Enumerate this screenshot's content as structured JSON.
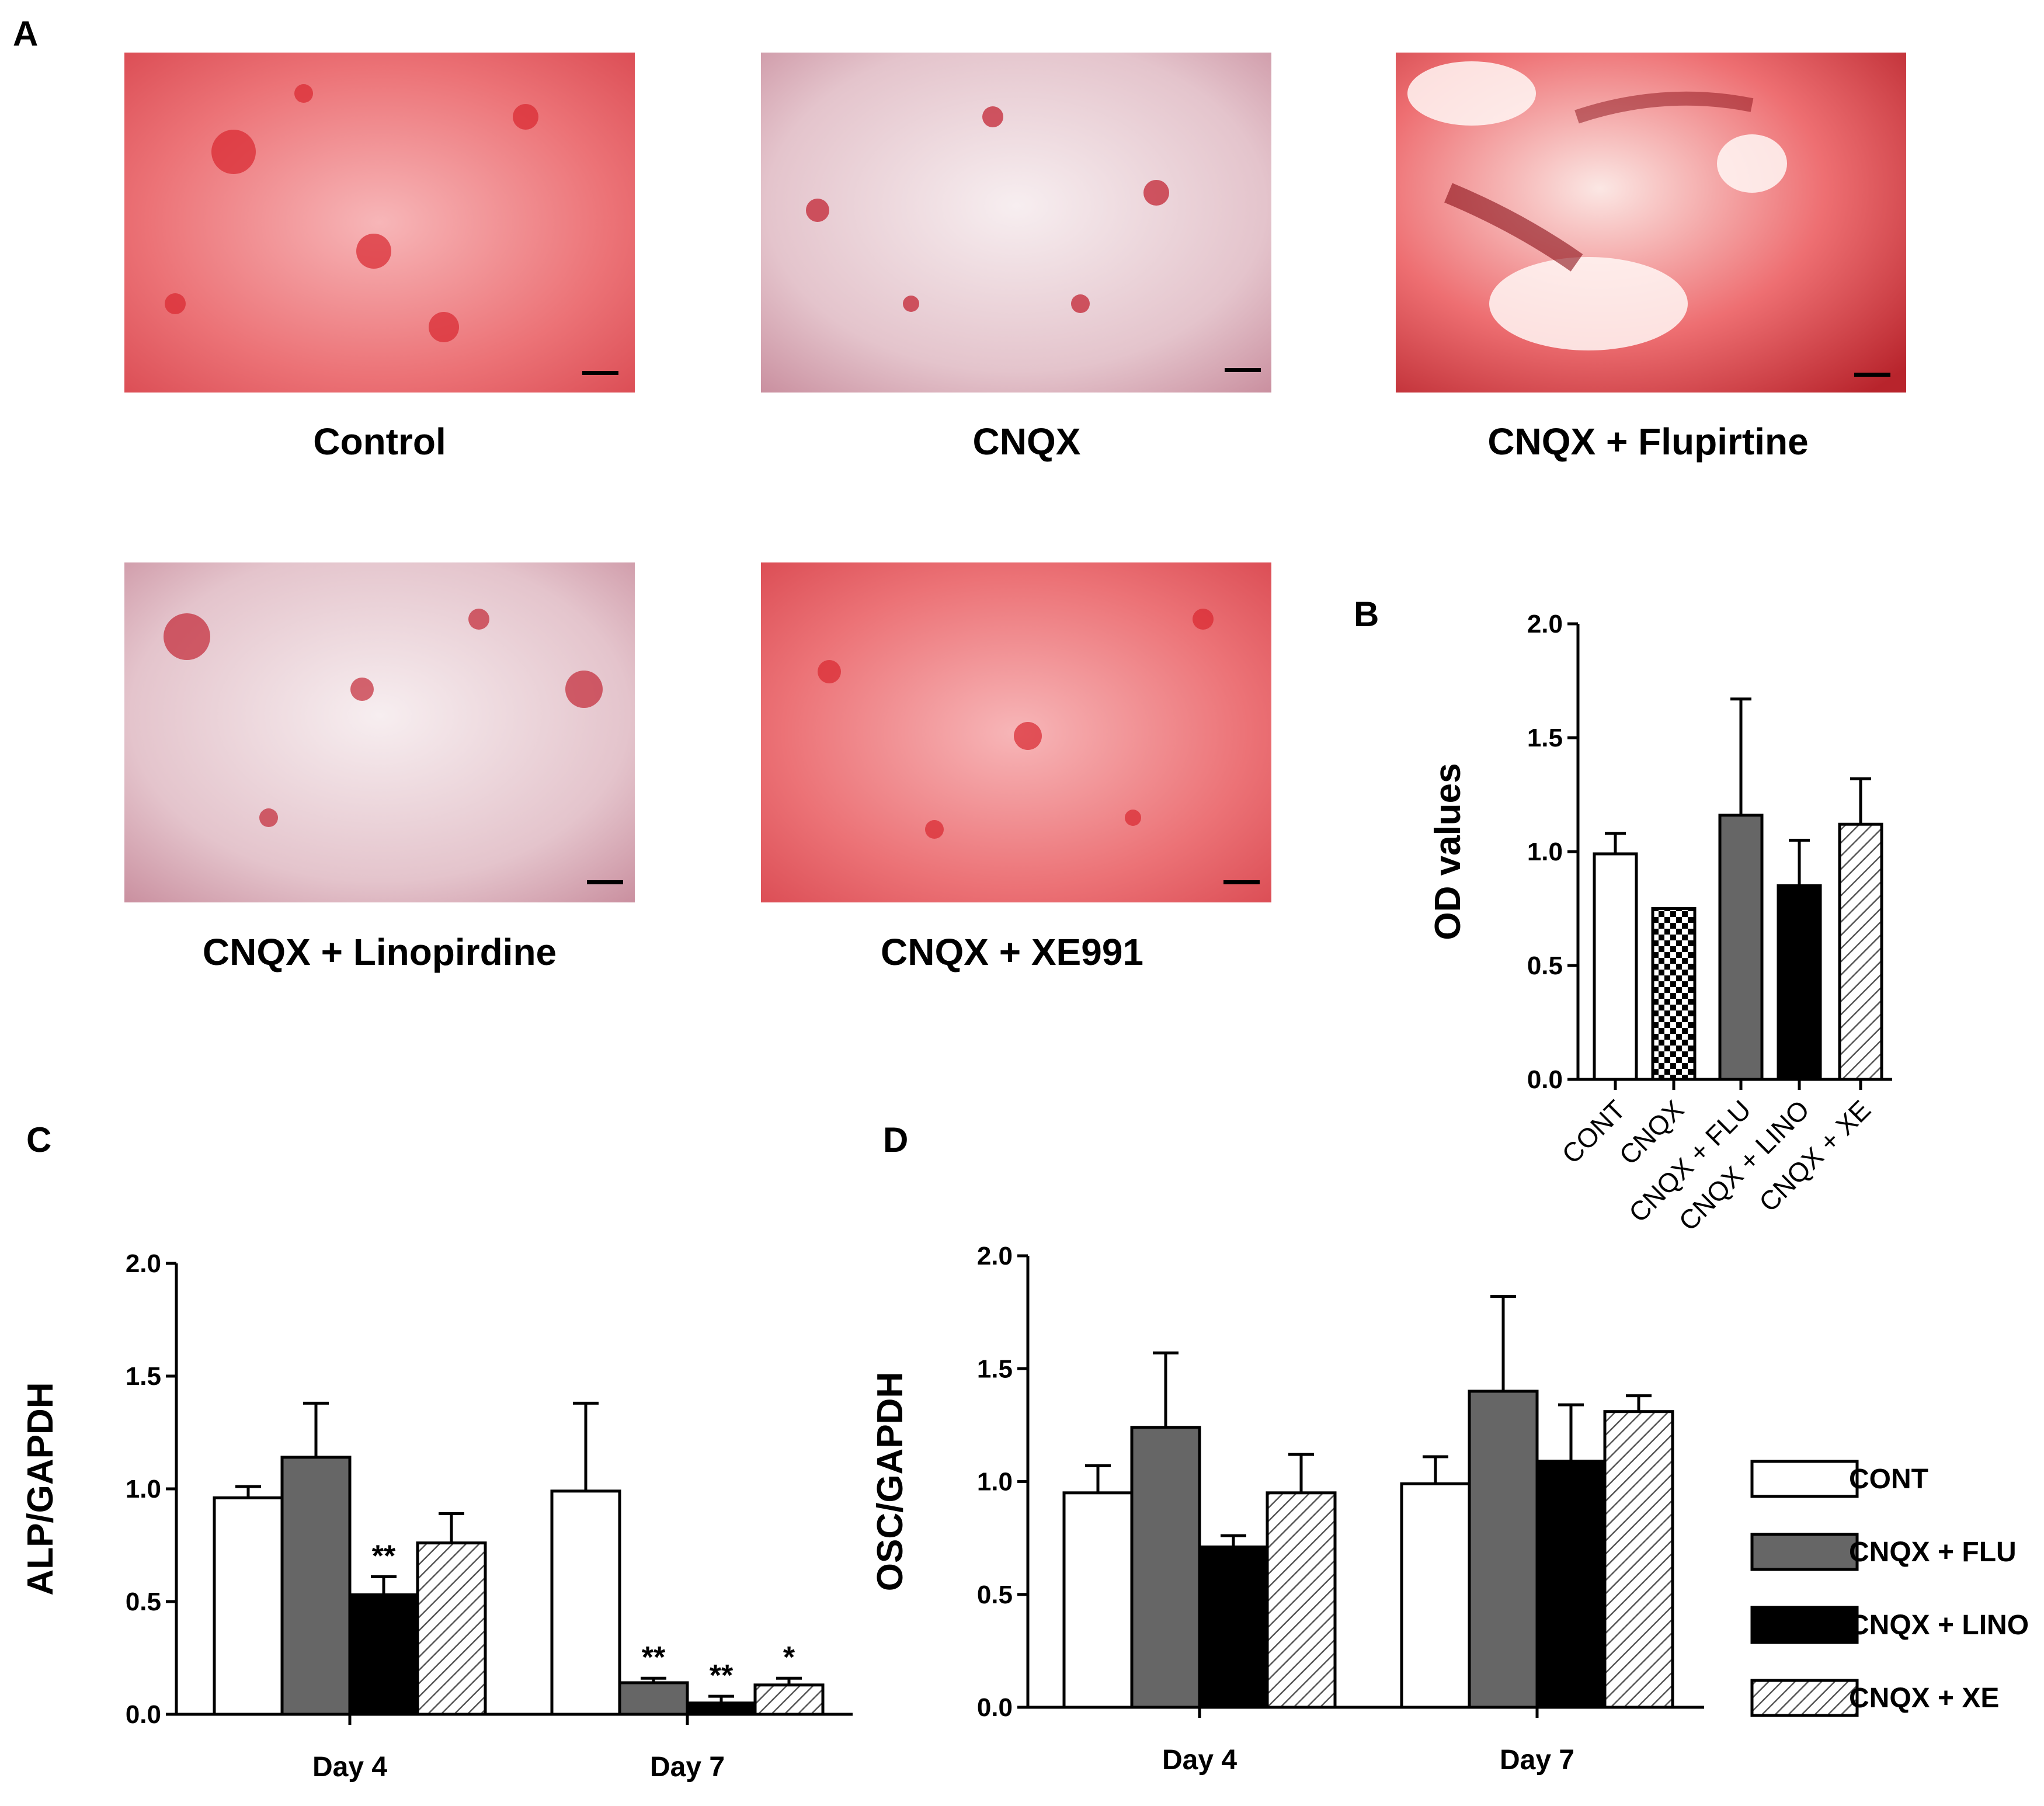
{
  "panels": {
    "a": {
      "letter": "A",
      "images": [
        {
          "caption": "Control",
          "tone": "#e8585f"
        },
        {
          "caption": "CNQX",
          "tone": "#d9a8b4"
        },
        {
          "caption": "CNQX + Flupirtine",
          "tone": "#e2484f"
        },
        {
          "caption": "CNQX + Linopirdine",
          "tone": "#d9aab5"
        },
        {
          "caption": "CNQX + XE991",
          "tone": "#e5555c"
        }
      ]
    },
    "b": {
      "letter": "B"
    },
    "c": {
      "letter": "C"
    },
    "d": {
      "letter": "D"
    }
  },
  "colors": {
    "cont": "#ffffff",
    "flu": "#666666",
    "lino": "#000000",
    "axis": "#000000"
  },
  "chart_data": [
    {
      "id": "B",
      "type": "bar",
      "title": "",
      "xlabel": "",
      "ylabel": "OD values",
      "ylim": [
        0,
        2.0
      ],
      "yticks": [
        "0.0",
        "0.5",
        "1.0",
        "1.5",
        "2.0"
      ],
      "categories": [
        "CONT",
        "CNQX",
        "CNQX + FLU",
        "CNQX + LINO",
        "CNQX + XE"
      ],
      "values": [
        0.99,
        0.75,
        1.16,
        0.85,
        1.12
      ],
      "errors": [
        0.09,
        0.0,
        0.51,
        0.2,
        0.2
      ],
      "fills": [
        "white",
        "checker",
        "gray",
        "black",
        "hatch"
      ]
    },
    {
      "id": "C",
      "type": "bar",
      "title": "",
      "xlabel": "",
      "ylabel": "ALP/GAPDH",
      "ylim": [
        0,
        2.0
      ],
      "yticks": [
        "0.0",
        "0.5",
        "1.0",
        "1.5",
        "2.0"
      ],
      "categories": [
        "Day 4",
        "Day 7"
      ],
      "series": [
        {
          "name": "CONT",
          "fill": "white",
          "values": [
            0.96,
            0.99
          ],
          "errors": [
            0.05,
            0.39
          ],
          "annotations": [
            "",
            ""
          ]
        },
        {
          "name": "CNQX + FLU",
          "fill": "gray",
          "values": [
            1.14,
            0.14
          ],
          "errors": [
            0.24,
            0.02
          ],
          "annotations": [
            "",
            "**"
          ]
        },
        {
          "name": "CNQX + LINO",
          "fill": "black",
          "values": [
            0.53,
            0.05
          ],
          "errors": [
            0.08,
            0.03
          ],
          "annotations": [
            "**",
            "**"
          ]
        },
        {
          "name": "CNQX + XE",
          "fill": "hatch",
          "values": [
            0.76,
            0.13
          ],
          "errors": [
            0.13,
            0.03
          ],
          "annotations": [
            "",
            "*"
          ]
        }
      ]
    },
    {
      "id": "D",
      "type": "bar",
      "title": "",
      "xlabel": "",
      "ylabel": "OSC/GAPDH",
      "ylim": [
        0,
        2.0
      ],
      "yticks": [
        "0.0",
        "0.5",
        "1.0",
        "1.5",
        "2.0"
      ],
      "categories": [
        "Day 4",
        "Day 7"
      ],
      "legend": "right",
      "series": [
        {
          "name": "CONT",
          "fill": "white",
          "values": [
            0.95,
            0.99
          ],
          "errors": [
            0.12,
            0.12
          ],
          "annotations": [
            "",
            ""
          ]
        },
        {
          "name": "CNQX + FLU",
          "fill": "gray",
          "values": [
            1.24,
            1.4
          ],
          "errors": [
            0.33,
            0.42
          ],
          "annotations": [
            "",
            ""
          ]
        },
        {
          "name": "CNQX + LINO",
          "fill": "black",
          "values": [
            0.71,
            1.09
          ],
          "errors": [
            0.05,
            0.25
          ],
          "annotations": [
            "",
            ""
          ]
        },
        {
          "name": "CNQX + XE",
          "fill": "hatch",
          "values": [
            0.95,
            1.31
          ],
          "errors": [
            0.17,
            0.07
          ],
          "annotations": [
            "",
            ""
          ]
        }
      ]
    }
  ]
}
